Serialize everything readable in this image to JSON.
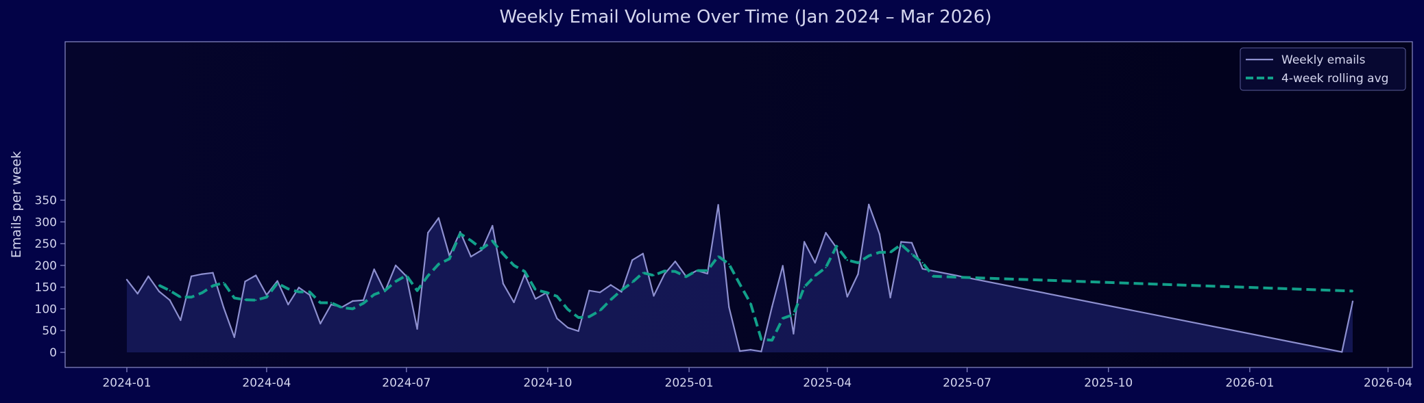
{
  "colors": {
    "figure_bg": "#030347",
    "plot_bg_left": "#05052c",
    "plot_bg_right": "#02021c",
    "axis": "#8b8cc8",
    "text": "#d6d7ef",
    "weekly_line": "#8e90d0",
    "weekly_fill": "#1a1d63",
    "rolling_line": "#12a08a",
    "legend_bg": "#070831",
    "legend_border": "#5b5d99"
  },
  "chart_data": {
    "type": "line",
    "title": "Weekly Email Volume Over Time (Jan 2024 – Mar 2026)",
    "xlabel": "",
    "ylabel": "Emails per week",
    "xlim": [
      "2023-12-04",
      "2026-04-14"
    ],
    "ylim": [
      -17,
      357
    ],
    "x_ticks": [
      "2024-01",
      "2024-04",
      "2024-07",
      "2024-10",
      "2025-01",
      "2025-04",
      "2025-07",
      "2025-10",
      "2026-01",
      "2026-04"
    ],
    "y_ticks": [
      0,
      50,
      100,
      150,
      200,
      250,
      300,
      350
    ],
    "grid": false,
    "legend_position": "top-right",
    "series": [
      {
        "name": "Weekly emails",
        "style": "solid",
        "filled": true,
        "points": [
          [
            "2024-01-01",
            167
          ],
          [
            "2024-01-08",
            135
          ],
          [
            "2024-01-15",
            175
          ],
          [
            "2024-01-22",
            140
          ],
          [
            "2024-01-29",
            120
          ],
          [
            "2024-02-05",
            74
          ],
          [
            "2024-02-12",
            175
          ],
          [
            "2024-02-19",
            180
          ],
          [
            "2024-02-26",
            183
          ],
          [
            "2024-03-04",
            103
          ],
          [
            "2024-03-11",
            35
          ],
          [
            "2024-03-18",
            163
          ],
          [
            "2024-03-25",
            177
          ],
          [
            "2024-04-01",
            132
          ],
          [
            "2024-04-08",
            164
          ],
          [
            "2024-04-15",
            110
          ],
          [
            "2024-04-22",
            149
          ],
          [
            "2024-04-29",
            132
          ],
          [
            "2024-05-06",
            66
          ],
          [
            "2024-05-13",
            110
          ],
          [
            "2024-05-20",
            104
          ],
          [
            "2024-05-27",
            118
          ],
          [
            "2024-06-03",
            120
          ],
          [
            "2024-06-10",
            191
          ],
          [
            "2024-06-17",
            140
          ],
          [
            "2024-06-24",
            200
          ],
          [
            "2024-07-01",
            175
          ],
          [
            "2024-07-08",
            54
          ],
          [
            "2024-07-15",
            275
          ],
          [
            "2024-07-22",
            309
          ],
          [
            "2024-07-29",
            222
          ],
          [
            "2024-08-05",
            277
          ],
          [
            "2024-08-12",
            220
          ],
          [
            "2024-08-19",
            235
          ],
          [
            "2024-08-26",
            291
          ],
          [
            "2024-09-02",
            158
          ],
          [
            "2024-09-09",
            115
          ],
          [
            "2024-09-16",
            179
          ],
          [
            "2024-09-23",
            123
          ],
          [
            "2024-09-30",
            137
          ],
          [
            "2024-10-07",
            78
          ],
          [
            "2024-10-14",
            57
          ],
          [
            "2024-10-21",
            49
          ],
          [
            "2024-10-28",
            142
          ],
          [
            "2024-11-04",
            138
          ],
          [
            "2024-11-11",
            155
          ],
          [
            "2024-11-18",
            139
          ],
          [
            "2024-11-25",
            212
          ],
          [
            "2024-12-02",
            227
          ],
          [
            "2024-12-09",
            130
          ],
          [
            "2024-12-16",
            180
          ],
          [
            "2024-12-23",
            209
          ],
          [
            "2024-12-30",
            175
          ],
          [
            "2025-01-06",
            188
          ],
          [
            "2025-01-13",
            181
          ],
          [
            "2025-01-20",
            339
          ],
          [
            "2025-01-27",
            104
          ],
          [
            "2025-02-03",
            3
          ],
          [
            "2025-02-10",
            6
          ],
          [
            "2025-02-17",
            2
          ],
          [
            "2025-02-24",
            105
          ],
          [
            "2025-03-03",
            199
          ],
          [
            "2025-03-10",
            43
          ],
          [
            "2025-03-17",
            254
          ],
          [
            "2025-03-24",
            206
          ],
          [
            "2025-03-31",
            275
          ],
          [
            "2025-04-07",
            240
          ],
          [
            "2025-04-14",
            128
          ],
          [
            "2025-04-21",
            180
          ],
          [
            "2025-04-28",
            340
          ],
          [
            "2025-05-05",
            272
          ],
          [
            "2025-05-12",
            126
          ],
          [
            "2025-05-19",
            254
          ],
          [
            "2025-05-26",
            252
          ],
          [
            "2025-06-02",
            192
          ],
          [
            "2026-03-02",
            1
          ],
          [
            "2026-03-09",
            117
          ]
        ]
      },
      {
        "name": "4-week rolling avg",
        "style": "dashed",
        "filled": false,
        "points": [
          [
            "2024-01-22",
            154
          ],
          [
            "2024-01-29",
            142
          ],
          [
            "2024-02-05",
            127
          ],
          [
            "2024-02-12",
            127
          ],
          [
            "2024-02-19",
            137
          ],
          [
            "2024-02-26",
            153
          ],
          [
            "2024-03-04",
            160
          ],
          [
            "2024-03-11",
            125
          ],
          [
            "2024-03-18",
            121
          ],
          [
            "2024-03-25",
            120
          ],
          [
            "2024-04-01",
            127
          ],
          [
            "2024-04-08",
            159
          ],
          [
            "2024-04-15",
            146
          ],
          [
            "2024-04-22",
            139
          ],
          [
            "2024-04-29",
            139
          ],
          [
            "2024-05-06",
            114
          ],
          [
            "2024-05-13",
            114
          ],
          [
            "2024-05-20",
            103
          ],
          [
            "2024-05-27",
            100
          ],
          [
            "2024-06-03",
            113
          ],
          [
            "2024-06-10",
            133
          ],
          [
            "2024-06-17",
            142
          ],
          [
            "2024-06-24",
            163
          ],
          [
            "2024-07-01",
            177
          ],
          [
            "2024-07-08",
            142
          ],
          [
            "2024-07-15",
            176
          ],
          [
            "2024-07-22",
            203
          ],
          [
            "2024-07-29",
            215
          ],
          [
            "2024-08-05",
            273
          ],
          [
            "2024-08-12",
            257
          ],
          [
            "2024-08-19",
            238
          ],
          [
            "2024-08-26",
            256
          ],
          [
            "2024-09-02",
            226
          ],
          [
            "2024-09-09",
            200
          ],
          [
            "2024-09-16",
            186
          ],
          [
            "2024-09-23",
            144
          ],
          [
            "2024-09-30",
            138
          ],
          [
            "2024-10-07",
            129
          ],
          [
            "2024-10-14",
            99
          ],
          [
            "2024-10-21",
            80
          ],
          [
            "2024-10-28",
            82
          ],
          [
            "2024-11-04",
            96
          ],
          [
            "2024-11-11",
            121
          ],
          [
            "2024-11-18",
            143
          ],
          [
            "2024-11-25",
            161
          ],
          [
            "2024-12-02",
            183
          ],
          [
            "2024-12-09",
            177
          ],
          [
            "2024-12-16",
            187
          ],
          [
            "2024-12-23",
            186
          ],
          [
            "2024-12-30",
            174
          ],
          [
            "2025-01-06",
            188
          ],
          [
            "2025-01-13",
            188
          ],
          [
            "2025-01-20",
            221
          ],
          [
            "2025-01-27",
            203
          ],
          [
            "2025-02-03",
            157
          ],
          [
            "2025-02-10",
            113
          ],
          [
            "2025-02-17",
            30
          ],
          [
            "2025-02-24",
            28
          ],
          [
            "2025-03-03",
            78
          ],
          [
            "2025-03-10",
            87
          ],
          [
            "2025-03-17",
            150
          ],
          [
            "2025-03-24",
            176
          ],
          [
            "2025-03-31",
            195
          ],
          [
            "2025-04-07",
            244
          ],
          [
            "2025-04-14",
            212
          ],
          [
            "2025-04-21",
            206
          ],
          [
            "2025-04-28",
            222
          ],
          [
            "2025-05-05",
            230
          ],
          [
            "2025-05-12",
            230
          ],
          [
            "2025-05-19",
            248
          ],
          [
            "2025-05-26",
            226
          ],
          [
            "2025-06-02",
            206
          ],
          [
            "2025-06-09",
            175
          ],
          [
            "2026-03-09",
            141
          ]
        ]
      }
    ]
  }
}
